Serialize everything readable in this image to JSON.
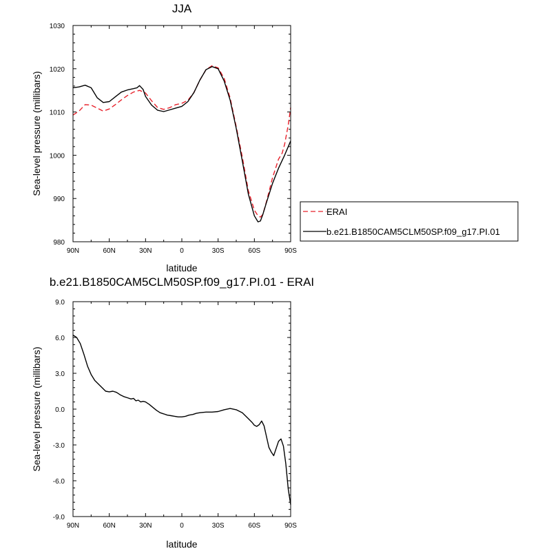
{
  "chart_data": [
    {
      "type": "line",
      "title": "JJA",
      "xlabel": "latitude",
      "ylabel": "Sea-level pressure (millibars)",
      "xlim": [
        90,
        -90
      ],
      "ylim": [
        980,
        1030
      ],
      "x_ticks": [
        90,
        60,
        30,
        0,
        -30,
        -60,
        -90
      ],
      "x_tick_labels": [
        "90N",
        "60N",
        "30N",
        "0",
        "30S",
        "60S",
        "90S"
      ],
      "y_ticks": [
        980,
        990,
        1000,
        1010,
        1020,
        1030
      ],
      "y_tick_labels": [
        "980",
        "990",
        "1000",
        "1010",
        "1020",
        "1030"
      ],
      "legend": {
        "position": "right",
        "entries": [
          {
            "label": "ERAI",
            "color": "#e8202a",
            "style": "dashed"
          },
          {
            "label": "b.e21.B1850CAM5CLM50SP.f09_g17.PI.01",
            "color": "#000000",
            "style": "solid"
          }
        ]
      },
      "series": [
        {
          "name": "ERAI",
          "color": "#e8202a",
          "style": "dashed",
          "x": [
            90,
            85,
            80,
            75,
            70,
            65,
            60,
            55,
            50,
            45,
            40,
            35,
            30,
            25,
            20,
            15,
            10,
            5,
            0,
            -5,
            -10,
            -15,
            -20,
            -25,
            -30,
            -35,
            -40,
            -45,
            -50,
            -55,
            -60,
            -63,
            -65,
            -67,
            -70,
            -75,
            -80,
            -83,
            -85,
            -88,
            -90
          ],
          "y": [
            1009.3,
            1010.2,
            1011.7,
            1011.6,
            1010.9,
            1010.2,
            1010.7,
            1011.7,
            1012.8,
            1013.8,
            1014.6,
            1015.0,
            1014.4,
            1012.6,
            1011.0,
            1010.6,
            1011.0,
            1011.7,
            1012.0,
            1012.7,
            1014.5,
            1017.4,
            1019.8,
            1020.7,
            1020.2,
            1017.8,
            1013.2,
            1006.6,
            999.6,
            991.8,
            987.3,
            986.0,
            985.7,
            986.3,
            989.3,
            994.8,
            999.1,
            1000.5,
            1002.5,
            1007.0,
            1011.0
          ]
        },
        {
          "name": "b.e21.B1850CAM5CLM50SP.f09_g17.PI.01",
          "color": "#000000",
          "style": "solid",
          "x": [
            90,
            85,
            80,
            75,
            70,
            65,
            60,
            55,
            50,
            45,
            40,
            37,
            35,
            32,
            30,
            25,
            20,
            15,
            10,
            5,
            0,
            -5,
            -10,
            -15,
            -20,
            -25,
            -30,
            -35,
            -40,
            -45,
            -50,
            -55,
            -60,
            -63,
            -65,
            -67,
            -70,
            -75,
            -80,
            -85,
            -90
          ],
          "y": [
            1015.6,
            1015.8,
            1016.2,
            1015.6,
            1013.3,
            1012.2,
            1012.4,
            1013.5,
            1014.6,
            1015.1,
            1015.4,
            1015.6,
            1016.1,
            1015.2,
            1013.6,
            1011.6,
            1010.4,
            1010.1,
            1010.5,
            1010.9,
            1011.3,
            1012.4,
            1014.5,
            1017.4,
            1019.8,
            1020.5,
            1020.0,
            1017.2,
            1012.7,
            1006.2,
            998.7,
            991.0,
            986.0,
            984.6,
            984.8,
            986.3,
            989.1,
            993.5,
            997.0,
            1000.0,
            1003.3
          ]
        }
      ]
    },
    {
      "type": "line",
      "title": "b.e21.B1850CAM5CLM50SP.f09_g17.PI.01 - ERAI",
      "xlabel": "latitude",
      "ylabel": "Sea-level pressure (millibars)",
      "xlim": [
        90,
        -90
      ],
      "ylim": [
        -9,
        9
      ],
      "x_ticks": [
        90,
        60,
        30,
        0,
        -30,
        -60,
        -90
      ],
      "x_tick_labels": [
        "90N",
        "60N",
        "30N",
        "0",
        "30S",
        "60S",
        "90S"
      ],
      "y_ticks": [
        -9,
        -6,
        -3,
        0,
        3,
        6,
        9
      ],
      "y_tick_labels": [
        "-9.0",
        "-6.0",
        "-3.0",
        "0.0",
        "3.0",
        "6.0",
        "9.0"
      ],
      "series": [
        {
          "color": "#000000",
          "style": "solid",
          "x": [
            90,
            87,
            84,
            81,
            78,
            75,
            72,
            69,
            66,
            63,
            60,
            57,
            54,
            51,
            48,
            45,
            42,
            40,
            38,
            36,
            34,
            32,
            30,
            27,
            24,
            21,
            18,
            15,
            12,
            9,
            6,
            3,
            0,
            -3,
            -6,
            -9,
            -12,
            -15,
            -20,
            -25,
            -30,
            -35,
            -40,
            -45,
            -50,
            -55,
            -58,
            -60,
            -62,
            -64,
            -66,
            -68,
            -70,
            -72,
            -74,
            -76,
            -78,
            -80,
            -82,
            -84,
            -86,
            -88,
            -90
          ],
          "y": [
            6.2,
            6.0,
            5.5,
            4.6,
            3.6,
            2.9,
            2.4,
            2.1,
            1.8,
            1.5,
            1.45,
            1.5,
            1.4,
            1.2,
            1.05,
            0.95,
            0.85,
            0.9,
            0.7,
            0.75,
            0.6,
            0.65,
            0.6,
            0.4,
            0.15,
            -0.1,
            -0.3,
            -0.4,
            -0.5,
            -0.55,
            -0.6,
            -0.65,
            -0.65,
            -0.6,
            -0.5,
            -0.45,
            -0.35,
            -0.3,
            -0.25,
            -0.25,
            -0.2,
            -0.05,
            0.05,
            -0.05,
            -0.3,
            -0.8,
            -1.1,
            -1.35,
            -1.45,
            -1.3,
            -1.0,
            -1.4,
            -2.3,
            -3.2,
            -3.6,
            -3.9,
            -3.3,
            -2.7,
            -2.5,
            -3.1,
            -4.6,
            -6.7,
            -8.0
          ]
        }
      ]
    }
  ]
}
